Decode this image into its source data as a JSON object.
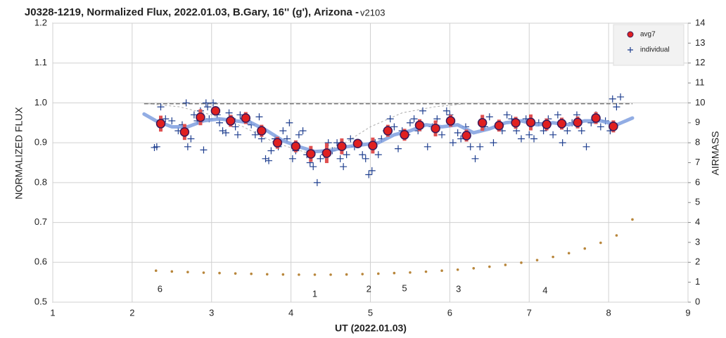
{
  "chart_data": {
    "type": "scatter",
    "title": "J0328-1219, Normalized Flux, 2022.01.03, B.Gary, 16'' (g'), Arizona - ",
    "title_suffix": "v2103",
    "x_label": "UT (2022.01.03)",
    "y_label": "NORMALIZED FLUX",
    "y2_label": "AIRMASS",
    "xlim": [
      1,
      9
    ],
    "xticks": [
      1,
      2,
      3,
      4,
      5,
      6,
      7,
      8,
      9
    ],
    "ylim": [
      0.5,
      1.2
    ],
    "yticks": [
      0.5,
      0.6,
      0.7,
      0.8,
      0.9,
      {
        "value": 1,
        "label": "1.0"
      },
      1.1,
      1.2
    ],
    "y2lim": [
      0,
      14
    ],
    "y2ticks": [
      0,
      1,
      2,
      3,
      4,
      5,
      6,
      7,
      8,
      9,
      10,
      11,
      12,
      13,
      14
    ],
    "grid": true,
    "legend": "top-right",
    "series": [
      {
        "kind": "dashed",
        "color": "#777777",
        "x": [
          2.15,
          8.3
        ],
        "values": [
          0.998,
          0.998
        ]
      },
      {
        "kind": "dotted",
        "color": "#aaaaaa",
        "x": [
          2.2,
          2.6,
          3.0,
          3.4,
          3.8,
          4.2,
          4.6,
          5.0,
          5.4,
          5.8,
          6.2
        ],
        "values": [
          0.998,
          0.99,
          0.97,
          0.94,
          0.9,
          0.875,
          0.89,
          0.94,
          0.975,
          0.99,
          0.998
        ]
      },
      {
        "name": "individual",
        "kind": "plus",
        "color": "#1f3f8f",
        "x": [
          2.28,
          2.31,
          2.36,
          2.42,
          2.5,
          2.58,
          2.63,
          2.68,
          2.7,
          2.74,
          2.78,
          2.82,
          2.86,
          2.9,
          2.93,
          2.95,
          2.97,
          3.02,
          3.05,
          3.07,
          3.1,
          3.14,
          3.18,
          3.22,
          3.26,
          3.3,
          3.33,
          3.36,
          3.4,
          3.45,
          3.5,
          3.55,
          3.6,
          3.63,
          3.68,
          3.72,
          3.75,
          3.8,
          3.84,
          3.9,
          3.95,
          3.98,
          4.02,
          4.06,
          4.1,
          4.15,
          4.2,
          4.24,
          4.28,
          4.33,
          4.37,
          4.42,
          4.47,
          4.52,
          4.58,
          4.62,
          4.66,
          4.7,
          4.75,
          4.8,
          4.86,
          4.9,
          4.94,
          4.98,
          5.02,
          5.06,
          5.1,
          5.14,
          5.2,
          5.25,
          5.3,
          5.35,
          5.4,
          5.46,
          5.5,
          5.55,
          5.6,
          5.66,
          5.72,
          5.78,
          5.84,
          5.9,
          5.96,
          6.0,
          6.04,
          6.1,
          6.14,
          6.2,
          6.26,
          6.32,
          6.38,
          6.44,
          6.5,
          6.55,
          6.6,
          6.66,
          6.72,
          6.78,
          6.84,
          6.9,
          6.96,
          7.0,
          7.06,
          7.12,
          7.18,
          7.24,
          7.3,
          7.36,
          7.42,
          7.48,
          7.54,
          7.6,
          7.66,
          7.72,
          7.78,
          7.84,
          7.9,
          7.96,
          8.02,
          8.05,
          8.1,
          8.15
        ],
        "values": [
          0.888,
          0.89,
          0.99,
          0.96,
          0.955,
          0.93,
          0.945,
          1.0,
          0.89,
          0.91,
          0.97,
          0.955,
          0.98,
          0.882,
          1.0,
          0.99,
          0.96,
          1.0,
          0.98,
          0.97,
          0.95,
          0.93,
          0.925,
          0.975,
          0.96,
          0.94,
          0.92,
          0.97,
          0.96,
          0.955,
          0.945,
          0.92,
          0.965,
          0.91,
          0.86,
          0.855,
          0.88,
          0.91,
          0.89,
          0.93,
          0.91,
          0.95,
          0.86,
          0.88,
          0.92,
          0.93,
          0.87,
          0.85,
          0.84,
          0.8,
          0.86,
          0.87,
          0.9,
          0.88,
          0.9,
          0.86,
          0.84,
          0.87,
          0.91,
          0.89,
          0.9,
          0.87,
          0.86,
          0.82,
          0.83,
          0.9,
          0.87,
          0.91,
          0.93,
          0.96,
          0.94,
          0.885,
          0.93,
          0.92,
          0.95,
          0.96,
          0.93,
          0.98,
          0.89,
          0.94,
          0.96,
          0.92,
          0.98,
          0.97,
          0.9,
          0.925,
          0.91,
          0.94,
          0.89,
          0.86,
          0.89,
          0.94,
          0.965,
          0.9,
          0.94,
          0.93,
          0.97,
          0.96,
          0.93,
          0.91,
          0.96,
          0.92,
          0.91,
          0.95,
          0.93,
          0.96,
          0.92,
          0.97,
          0.9,
          0.93,
          0.95,
          0.97,
          0.93,
          0.89,
          0.95,
          0.97,
          0.94,
          0.955,
          0.93,
          1.01,
          0.99,
          1.015
        ]
      },
      {
        "kind": "model",
        "color": "#7f9fdf",
        "x": [
          2.15,
          2.3,
          2.5,
          2.7,
          2.9,
          3.1,
          3.3,
          3.5,
          3.7,
          3.9,
          4.1,
          4.3,
          4.5,
          4.7,
          4.9,
          5.1,
          5.3,
          5.5,
          5.7,
          5.9,
          6.1,
          6.3,
          6.5,
          6.7,
          6.9,
          7.1,
          7.3,
          7.5,
          7.7,
          7.9,
          8.1,
          8.3
        ],
        "values": [
          0.972,
          0.955,
          0.94,
          0.94,
          0.955,
          0.96,
          0.955,
          0.95,
          0.93,
          0.905,
          0.89,
          0.878,
          0.88,
          0.89,
          0.895,
          0.9,
          0.92,
          0.93,
          0.945,
          0.94,
          0.945,
          0.925,
          0.935,
          0.95,
          0.955,
          0.945,
          0.95,
          0.945,
          0.955,
          0.955,
          0.945,
          0.962
        ]
      },
      {
        "name": "avg7",
        "kind": "circle",
        "color": "#e02020",
        "error_color": "#e05050",
        "x": [
          2.36,
          2.66,
          2.86,
          3.05,
          3.24,
          3.43,
          3.63,
          3.83,
          4.06,
          4.25,
          4.45,
          4.64,
          4.84,
          5.03,
          5.22,
          5.43,
          5.62,
          5.82,
          6.01,
          6.21,
          6.41,
          6.62,
          6.83,
          7.02,
          7.22,
          7.41,
          7.61,
          7.84,
          8.06
        ],
        "values": [
          0.948,
          0.927,
          0.964,
          0.98,
          0.955,
          0.962,
          0.93,
          0.9,
          0.891,
          0.872,
          0.874,
          0.891,
          0.898,
          0.893,
          0.93,
          0.92,
          0.944,
          0.936,
          0.955,
          0.918,
          0.95,
          0.943,
          0.95,
          0.951,
          0.946,
          0.948,
          0.951,
          0.962,
          0.941
        ],
        "errors": [
          0.02,
          0.02,
          0.02,
          0.01,
          0.015,
          0.015,
          0.015,
          0.015,
          0.015,
          0.02,
          0.025,
          0.02,
          0.01,
          0.02,
          0.015,
          0.015,
          0.015,
          0.02,
          0.015,
          0.015,
          0.02,
          0.015,
          0.015,
          0.02,
          0.015,
          0.015,
          0.015,
          0.015,
          0.015
        ]
      },
      {
        "kind": "dots",
        "color": "#b8863b",
        "axis": "y2",
        "x": [
          2.3,
          2.5,
          2.7,
          2.9,
          3.1,
          3.3,
          3.5,
          3.7,
          3.9,
          4.1,
          4.3,
          4.5,
          4.7,
          4.9,
          5.1,
          5.3,
          5.5,
          5.7,
          5.9,
          6.1,
          6.3,
          6.5,
          6.7,
          6.9,
          7.1,
          7.3,
          7.5,
          7.7,
          7.9,
          8.1,
          8.3
        ],
        "values": [
          1.58,
          1.54,
          1.51,
          1.48,
          1.46,
          1.44,
          1.42,
          1.4,
          1.39,
          1.38,
          1.38,
          1.38,
          1.39,
          1.41,
          1.43,
          1.46,
          1.49,
          1.53,
          1.58,
          1.63,
          1.7,
          1.78,
          1.87,
          1.98,
          2.11,
          2.27,
          2.46,
          2.69,
          2.98,
          3.35,
          4.15
        ]
      }
    ],
    "annotations": [
      {
        "text": "6",
        "x": 2.35,
        "y2": 0.63
      },
      {
        "text": "1",
        "x": 4.3,
        "y2": 0.39
      },
      {
        "text": "2",
        "x": 4.98,
        "y2": 0.63
      },
      {
        "text": "5",
        "x": 5.43,
        "y2": 0.67
      },
      {
        "text": "3",
        "x": 6.11,
        "y2": 0.63
      },
      {
        "text": "4",
        "x": 7.2,
        "y2": 0.56
      }
    ]
  }
}
